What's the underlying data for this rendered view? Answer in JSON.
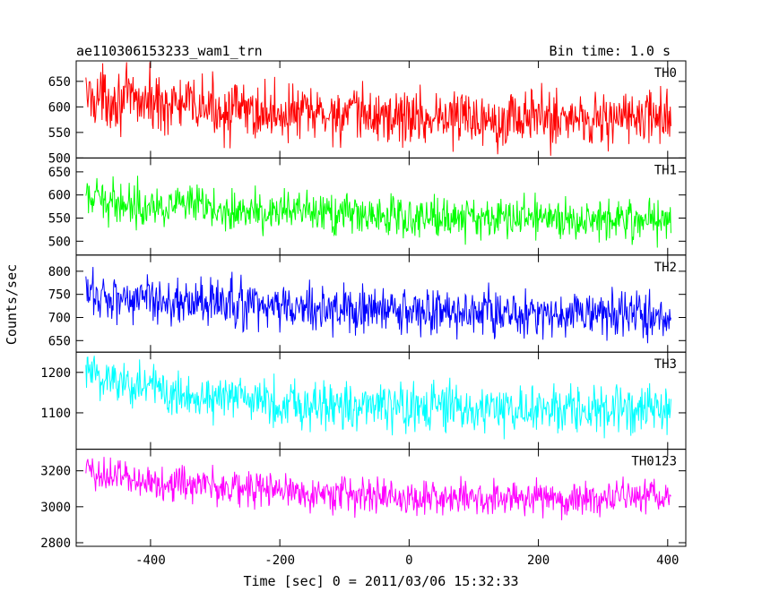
{
  "chart_data": {
    "type": "line",
    "title": "ae110306153233_wam1_trn",
    "subtitle": "Bin time: 1.0 s",
    "xlabel": "Time [sec] 0 = 2011/03/06 15:32:33",
    "ylabel": "Counts/sec",
    "xlim": [
      -515,
      428
    ],
    "x_ticks": [
      -400,
      -200,
      0,
      200,
      400
    ],
    "x_start": -500,
    "x_end": 405,
    "panels": [
      {
        "name": "TH0",
        "color": "#ff0000",
        "ylim": [
          500,
          690
        ],
        "y_ticks": [
          500,
          550,
          600,
          650
        ],
        "trend": [
          [
            -500,
            622
          ],
          [
            -400,
            610
          ],
          [
            -250,
            590
          ],
          [
            0,
            580
          ],
          [
            400,
            578
          ]
        ],
        "noise": 28
      },
      {
        "name": "TH1",
        "color": "#00ff00",
        "ylim": [
          470,
          680
        ],
        "y_ticks": [
          500,
          550,
          600,
          650
        ],
        "trend": [
          [
            -500,
            590
          ],
          [
            -400,
            580
          ],
          [
            -250,
            565
          ],
          [
            0,
            553
          ],
          [
            400,
            548
          ]
        ],
        "noise": 22
      },
      {
        "name": "TH2",
        "color": "#0000ff",
        "ylim": [
          625,
          835
        ],
        "y_ticks": [
          650,
          700,
          750,
          800
        ],
        "trend": [
          [
            -500,
            750
          ],
          [
            -400,
            740
          ],
          [
            -250,
            725
          ],
          [
            0,
            712
          ],
          [
            400,
            705
          ]
        ],
        "noise": 26
      },
      {
        "name": "TH3",
        "color": "#00ffff",
        "ylim": [
          1010,
          1250
        ],
        "y_ticks": [
          1100,
          1200
        ],
        "trend": [
          [
            -500,
            1200
          ],
          [
            -400,
            1160
          ],
          [
            -250,
            1130
          ],
          [
            0,
            1110
          ],
          [
            400,
            1105
          ]
        ],
        "noise": 30
      },
      {
        "name": "TH0123",
        "color": "#ff00ff",
        "ylim": [
          2780,
          3320
        ],
        "y_ticks": [
          2800,
          3000,
          3200
        ],
        "trend": [
          [
            -500,
            3200
          ],
          [
            -400,
            3140
          ],
          [
            -200,
            3090
          ],
          [
            0,
            3050
          ],
          [
            400,
            3050
          ]
        ],
        "noise": 50
      }
    ]
  }
}
